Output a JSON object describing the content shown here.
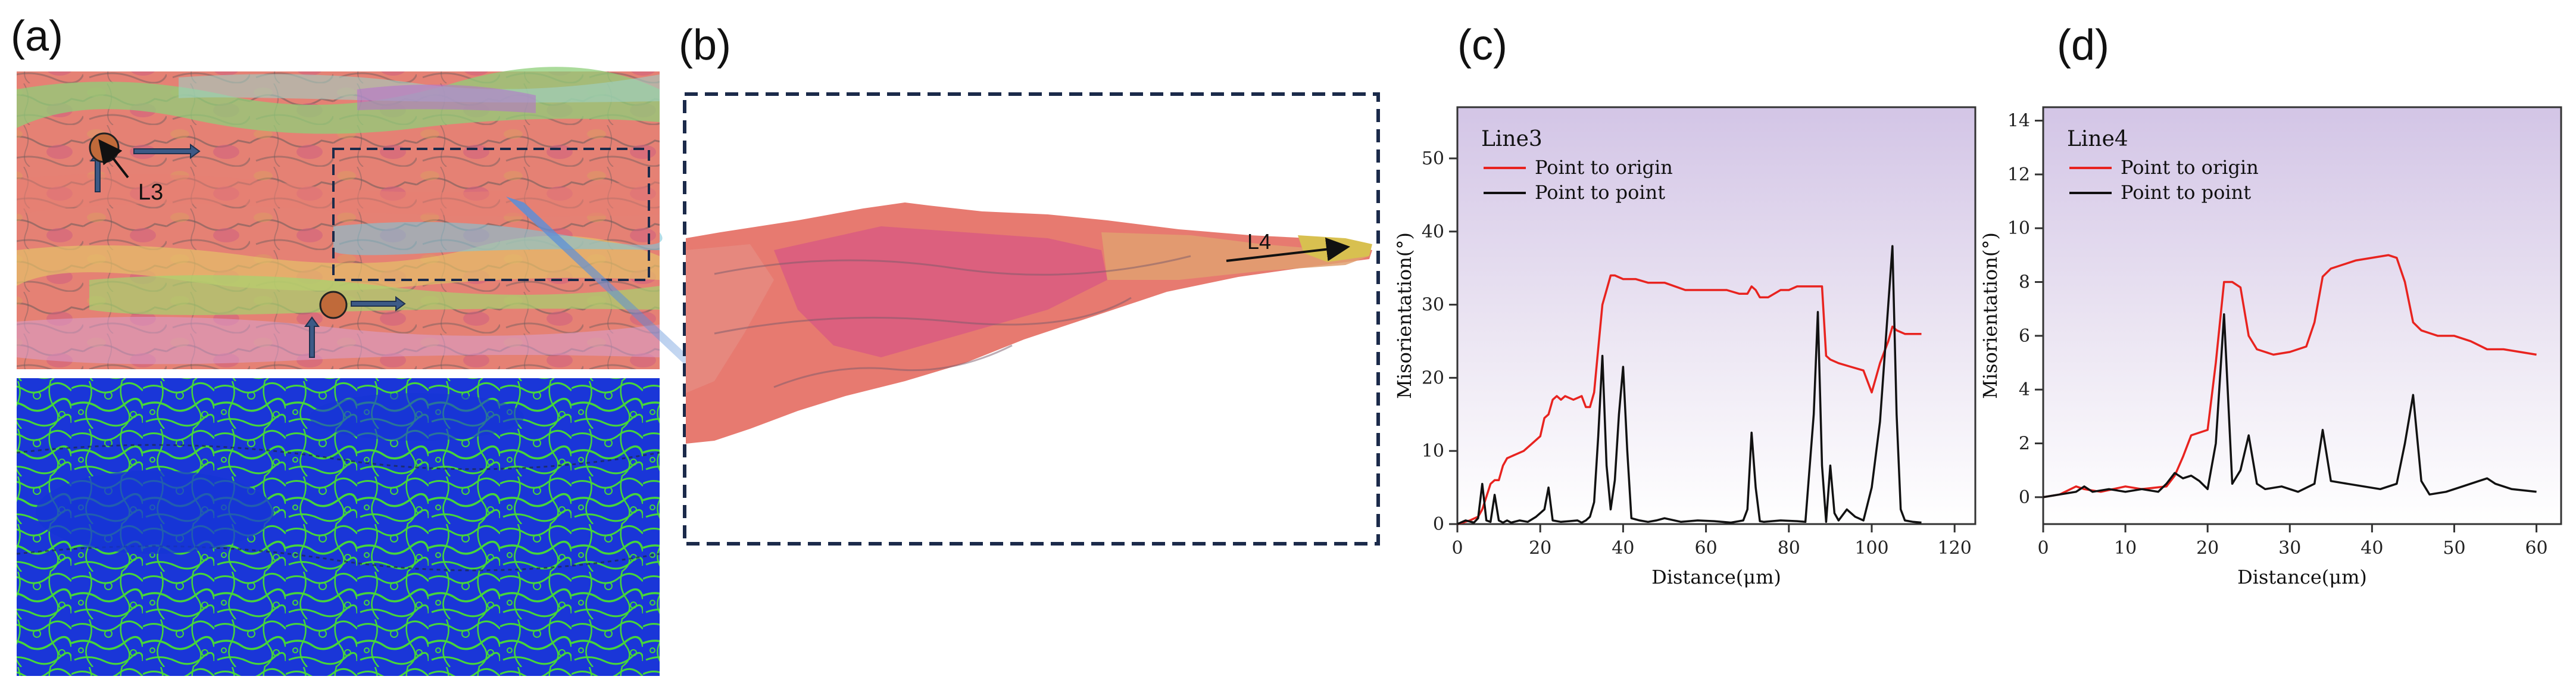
{
  "panel_labels": {
    "a": "(a)",
    "b": "(b)",
    "c": "(c)",
    "d": "(d)"
  },
  "panel_a": {
    "marker_label": "L3"
  },
  "panel_b": {
    "marker_label": "L4"
  },
  "colors": {
    "origin": "#e8231f",
    "point": "#111111",
    "plot_top": "#d3c5e6",
    "ipf_red": "#e77a70",
    "ipf_pink": "#d95c80",
    "kam_blue": "#1733d6",
    "kam_green": "#43d63c",
    "dash": "#1b2a4a",
    "arrow_blue": "#3d5a86"
  },
  "chart_data": [
    {
      "id": "c",
      "type": "line",
      "title": "Line3",
      "xlabel": "Distance(μm)",
      "ylabel": "Misorientation(°)",
      "xlim": [
        0,
        125
      ],
      "ylim": [
        0,
        57
      ],
      "xticks": [
        0,
        20,
        40,
        60,
        80,
        100,
        120
      ],
      "yticks": [
        0,
        10,
        20,
        30,
        40,
        50
      ],
      "legend": "top-left",
      "series": [
        {
          "name": "Point to origin",
          "color": "#e8231f",
          "x": [
            0,
            3,
            5,
            6,
            8,
            9,
            10,
            11,
            12,
            14,
            16,
            18,
            20,
            21,
            22,
            23,
            24,
            25,
            26,
            28,
            30,
            31,
            32,
            33,
            34,
            35,
            36,
            37,
            38,
            40,
            43,
            46,
            50,
            55,
            60,
            65,
            68,
            70,
            71,
            72,
            73,
            75,
            78,
            80,
            82,
            85,
            88,
            89,
            90,
            92,
            95,
            98,
            100,
            101,
            102,
            104,
            105,
            106,
            108,
            110,
            112
          ],
          "values": [
            0,
            0.5,
            1,
            2,
            5.5,
            6,
            6,
            8,
            9,
            9.5,
            10,
            11,
            12,
            14.5,
            15,
            17,
            17.5,
            17,
            17.5,
            17,
            17.5,
            16,
            16,
            18,
            24,
            30,
            32,
            34,
            34,
            33.5,
            33.5,
            33,
            33,
            32,
            32,
            32,
            31.5,
            31.5,
            32.5,
            32,
            31,
            31,
            32,
            32,
            32.5,
            32.5,
            32.5,
            23,
            22.5,
            22,
            21.5,
            21,
            18,
            20,
            22,
            25,
            27,
            26.5,
            26,
            26,
            26
          ]
        },
        {
          "name": "Point to point",
          "color": "#111111",
          "x": [
            0,
            2,
            4,
            5,
            6,
            7,
            8,
            9,
            10,
            11,
            12,
            13,
            15,
            17,
            19,
            21,
            22,
            23,
            25,
            27,
            29,
            30,
            31,
            32,
            33,
            34,
            35,
            36,
            37,
            38,
            39,
            40,
            41,
            42,
            44,
            46,
            48,
            50,
            54,
            58,
            62,
            66,
            69,
            70,
            71,
            72,
            73,
            74,
            78,
            82,
            84,
            86,
            87,
            88,
            89,
            90,
            91,
            92,
            94,
            96,
            98,
            100,
            102,
            104,
            105,
            106,
            107,
            108,
            110,
            112
          ],
          "values": [
            0,
            0.5,
            0.2,
            0.8,
            5.5,
            0.5,
            0.3,
            4,
            0.5,
            0.2,
            0.5,
            0.2,
            0.5,
            0.3,
            1,
            2,
            5,
            0.5,
            0.3,
            0.4,
            0.5,
            0.2,
            0.5,
            1,
            3,
            12,
            23,
            8,
            2,
            6,
            15,
            21.5,
            10,
            0.8,
            0.5,
            0.3,
            0.5,
            0.8,
            0.3,
            0.5,
            0.4,
            0.2,
            0.5,
            2,
            12.5,
            5,
            0.4,
            0.3,
            0.5,
            0.4,
            0.3,
            15,
            29,
            8,
            0.3,
            8,
            1.5,
            0.5,
            2,
            1,
            0.5,
            5,
            14,
            30,
            38,
            15,
            2,
            0.5,
            0.3,
            0.2
          ]
        }
      ]
    },
    {
      "id": "d",
      "type": "line",
      "title": "Line4",
      "xlabel": "Distance(μm)",
      "ylabel": "Misorientation(°)",
      "xlim": [
        0,
        63
      ],
      "ylim": [
        -1,
        14.5
      ],
      "xticks": [
        0,
        10,
        20,
        30,
        40,
        50,
        60
      ],
      "yticks": [
        0,
        2,
        4,
        6,
        8,
        10,
        12,
        14
      ],
      "legend": "top-left",
      "series": [
        {
          "name": "Point to origin",
          "color": "#e8231f",
          "x": [
            0,
            2,
            4,
            5,
            7,
            10,
            12,
            15,
            16,
            17,
            18,
            20,
            21,
            22,
            23,
            24,
            25,
            26,
            27,
            28,
            30,
            32,
            33,
            34,
            35,
            36,
            38,
            40,
            42,
            43,
            44,
            45,
            46,
            47,
            48,
            50,
            52,
            54,
            56,
            58,
            60
          ],
          "values": [
            0,
            0.1,
            0.4,
            0.3,
            0.2,
            0.4,
            0.3,
            0.4,
            0.8,
            1.5,
            2.3,
            2.5,
            5,
            8,
            8,
            7.8,
            6,
            5.5,
            5.4,
            5.3,
            5.4,
            5.6,
            6.5,
            8.2,
            8.5,
            8.6,
            8.8,
            8.9,
            9,
            8.9,
            8,
            6.5,
            6.2,
            6.1,
            6,
            6,
            5.8,
            5.5,
            5.5,
            5.4,
            5.3
          ]
        },
        {
          "name": "Point to point",
          "color": "#111111",
          "x": [
            0,
            2,
            4,
            5,
            6,
            8,
            10,
            12,
            14,
            15,
            16,
            17,
            18,
            19,
            20,
            21,
            22,
            23,
            24,
            25,
            26,
            27,
            29,
            31,
            33,
            34,
            35,
            37,
            39,
            41,
            43,
            44,
            45,
            46,
            47,
            49,
            51,
            53,
            54,
            55,
            57,
            60
          ],
          "values": [
            0,
            0.1,
            0.2,
            0.4,
            0.2,
            0.3,
            0.2,
            0.3,
            0.2,
            0.5,
            0.9,
            0.7,
            0.8,
            0.6,
            0.3,
            2,
            6.8,
            0.5,
            1,
            2.3,
            0.5,
            0.3,
            0.4,
            0.2,
            0.5,
            2.5,
            0.6,
            0.5,
            0.4,
            0.3,
            0.5,
            2,
            3.8,
            0.6,
            0.1,
            0.2,
            0.4,
            0.6,
            0.7,
            0.5,
            0.3,
            0.2
          ]
        }
      ]
    }
  ]
}
